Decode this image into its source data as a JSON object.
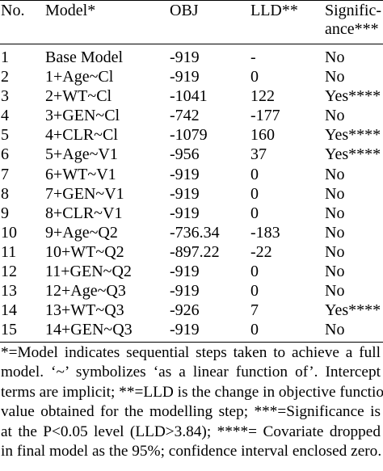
{
  "header": {
    "no": "No.",
    "model": "Model*",
    "obj": "OBJ",
    "lld": "LLD**",
    "significance_line1": "Signific-",
    "significance_line2": "ance***"
  },
  "rows": [
    {
      "no": "1",
      "model": "Base Model",
      "obj": "-919",
      "lld": "-",
      "sig": "No"
    },
    {
      "no": "2",
      "model": "1+Age~Cl",
      "obj": "-919",
      "lld": "0",
      "sig": "No"
    },
    {
      "no": "3",
      "model": "2+WT~Cl",
      "obj": "-1041",
      "lld": "122",
      "sig": "Yes****"
    },
    {
      "no": "4",
      "model": "3+GEN~Cl",
      "obj": "-742",
      "lld": "-177",
      "sig": "No"
    },
    {
      "no": "5",
      "model": "4+CLR~Cl",
      "obj": "-1079",
      "lld": "160",
      "sig": "Yes****"
    },
    {
      "no": "6",
      "model": "5+Age~V1",
      "obj": "-956",
      "lld": "37",
      "sig": "Yes****"
    },
    {
      "no": "7",
      "model": "6+WT~V1",
      "obj": "-919",
      "lld": "0",
      "sig": "No"
    },
    {
      "no": "8",
      "model": "7+GEN~V1",
      "obj": "-919",
      "lld": "0",
      "sig": "No"
    },
    {
      "no": "9",
      "model": "8+CLR~V1",
      "obj": "-919",
      "lld": "0",
      "sig": "No"
    },
    {
      "no": "10",
      "model": "9+Age~Q2",
      "obj": "-736.34",
      "lld": "-183",
      "sig": "No"
    },
    {
      "no": "11",
      "model": "10+WT~Q2",
      "obj": "-897.22",
      "lld": "-22",
      "sig": "No"
    },
    {
      "no": "12",
      "model": "11+GEN~Q2",
      "obj": "-919",
      "lld": "0",
      "sig": "No"
    },
    {
      "no": "13",
      "model": "12+Age~Q3",
      "obj": "-919",
      "lld": "0",
      "sig": "No"
    },
    {
      "no": "14",
      "model": "13+WT~Q3",
      "obj": "-926",
      "lld": "7",
      "sig": "Yes****"
    },
    {
      "no": "15",
      "model": "14+GEN~Q3",
      "obj": "-919",
      "lld": "0",
      "sig": "No"
    }
  ],
  "footnote": {
    "lines": [
      "*=Model indicates sequential steps taken to achieve a full",
      "model. ‘~’ symbolizes ‘as a linear function of’. Intercept",
      "terms are implicit; **=LLD is the change in objective function",
      "value obtained for the modelling step; ***=Significance is",
      "at the P<0.05 level (LLD>3.84); ****= Covariate dropped",
      "in final model as the 95%; confidence interval enclosed zero."
    ]
  }
}
